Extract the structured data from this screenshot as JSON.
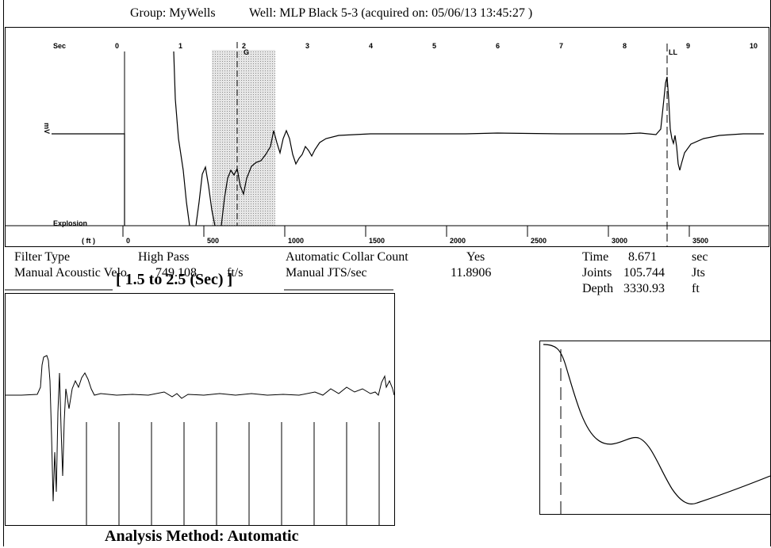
{
  "header": {
    "group": "Group: MyWells",
    "well": "Well: MLP Black 5-3 (acquired on: 05/06/13 13:45:27 )"
  },
  "main_plot": {
    "sec_label": "Sec",
    "sec_ticks": [
      "0",
      "1",
      "2",
      "3",
      "4",
      "5",
      "6",
      "7",
      "8",
      "9",
      "10"
    ],
    "ft_label": "( ft )",
    "ft_ticks": [
      "0",
      "500",
      "1000",
      "1500",
      "2000",
      "2500",
      "3000",
      "3500"
    ],
    "explosion_label": "Explosion",
    "y_label": "mV",
    "marker_label": "LL",
    "window_label": "G"
  },
  "info": {
    "filter_type_label": "Filter Type",
    "filter_type_value": "High Pass",
    "manual_velo_label": "Manual Acoustic Velo",
    "manual_velo_value": "749.108",
    "manual_velo_unit": "ft/s",
    "auto_collar_label": "Automatic Collar Count",
    "auto_collar_value": "Yes",
    "manual_jts_label": "Manual JTS/sec",
    "manual_jts_value": "11.8906",
    "time_label": "Time",
    "time_value": "8.671",
    "time_unit": "sec",
    "joints_label": "Joints",
    "joints_value": "105.744",
    "joints_unit": "Jts",
    "depth_label": "Depth",
    "depth_value": "3330.93",
    "depth_unit": "ft"
  },
  "zoom": {
    "label": "[ 1.5  to  2.5 (Sec) ]"
  },
  "analysis": {
    "text": "Analysis Method:   Automatic"
  }
}
